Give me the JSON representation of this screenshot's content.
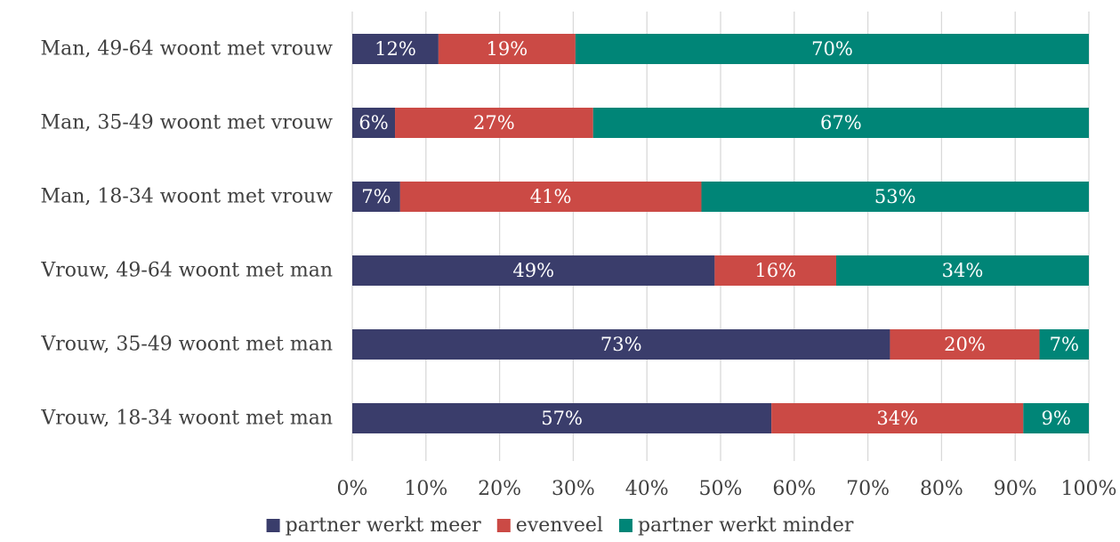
{
  "chart_data": {
    "type": "bar",
    "orientation": "horizontal",
    "stacked": true,
    "title": "",
    "xlabel": "",
    "ylabel": "",
    "xlim": [
      0,
      100
    ],
    "grid": true,
    "legend_position": "bottom",
    "categories": [
      "Man, 49-64 woont met vrouw",
      "Man, 35-49 woont met vrouw",
      "Man, 18-34 woont met vrouw",
      "Vrouw, 49-64 woont met man",
      "Vrouw, 35-49 woont met man",
      "Vrouw, 18-34 woont met man"
    ],
    "x_ticks": [
      "0%",
      "10%",
      "20%",
      "30%",
      "40%",
      "50%",
      "60%",
      "70%",
      "80%",
      "90%",
      "100%"
    ],
    "series": [
      {
        "name": "partner werkt meer",
        "color": "#3a3d6b",
        "values": [
          11.7,
          5.8,
          6.5,
          49.2,
          73.0,
          56.9
        ],
        "labels": [
          "12%",
          "6%",
          "7%",
          "49%",
          "73%",
          "57%"
        ]
      },
      {
        "name": "evenveel",
        "color": "#cb4a45",
        "values": [
          18.6,
          26.9,
          40.9,
          16.5,
          20.3,
          34.2
        ],
        "labels": [
          "19%",
          "27%",
          "41%",
          "16%",
          "20%",
          "34%"
        ]
      },
      {
        "name": "partner werkt minder",
        "color": "#008577",
        "values": [
          69.7,
          67.3,
          52.6,
          34.3,
          6.7,
          8.9
        ],
        "labels": [
          "70%",
          "67%",
          "53%",
          "34%",
          "7%",
          "9%"
        ]
      }
    ]
  }
}
